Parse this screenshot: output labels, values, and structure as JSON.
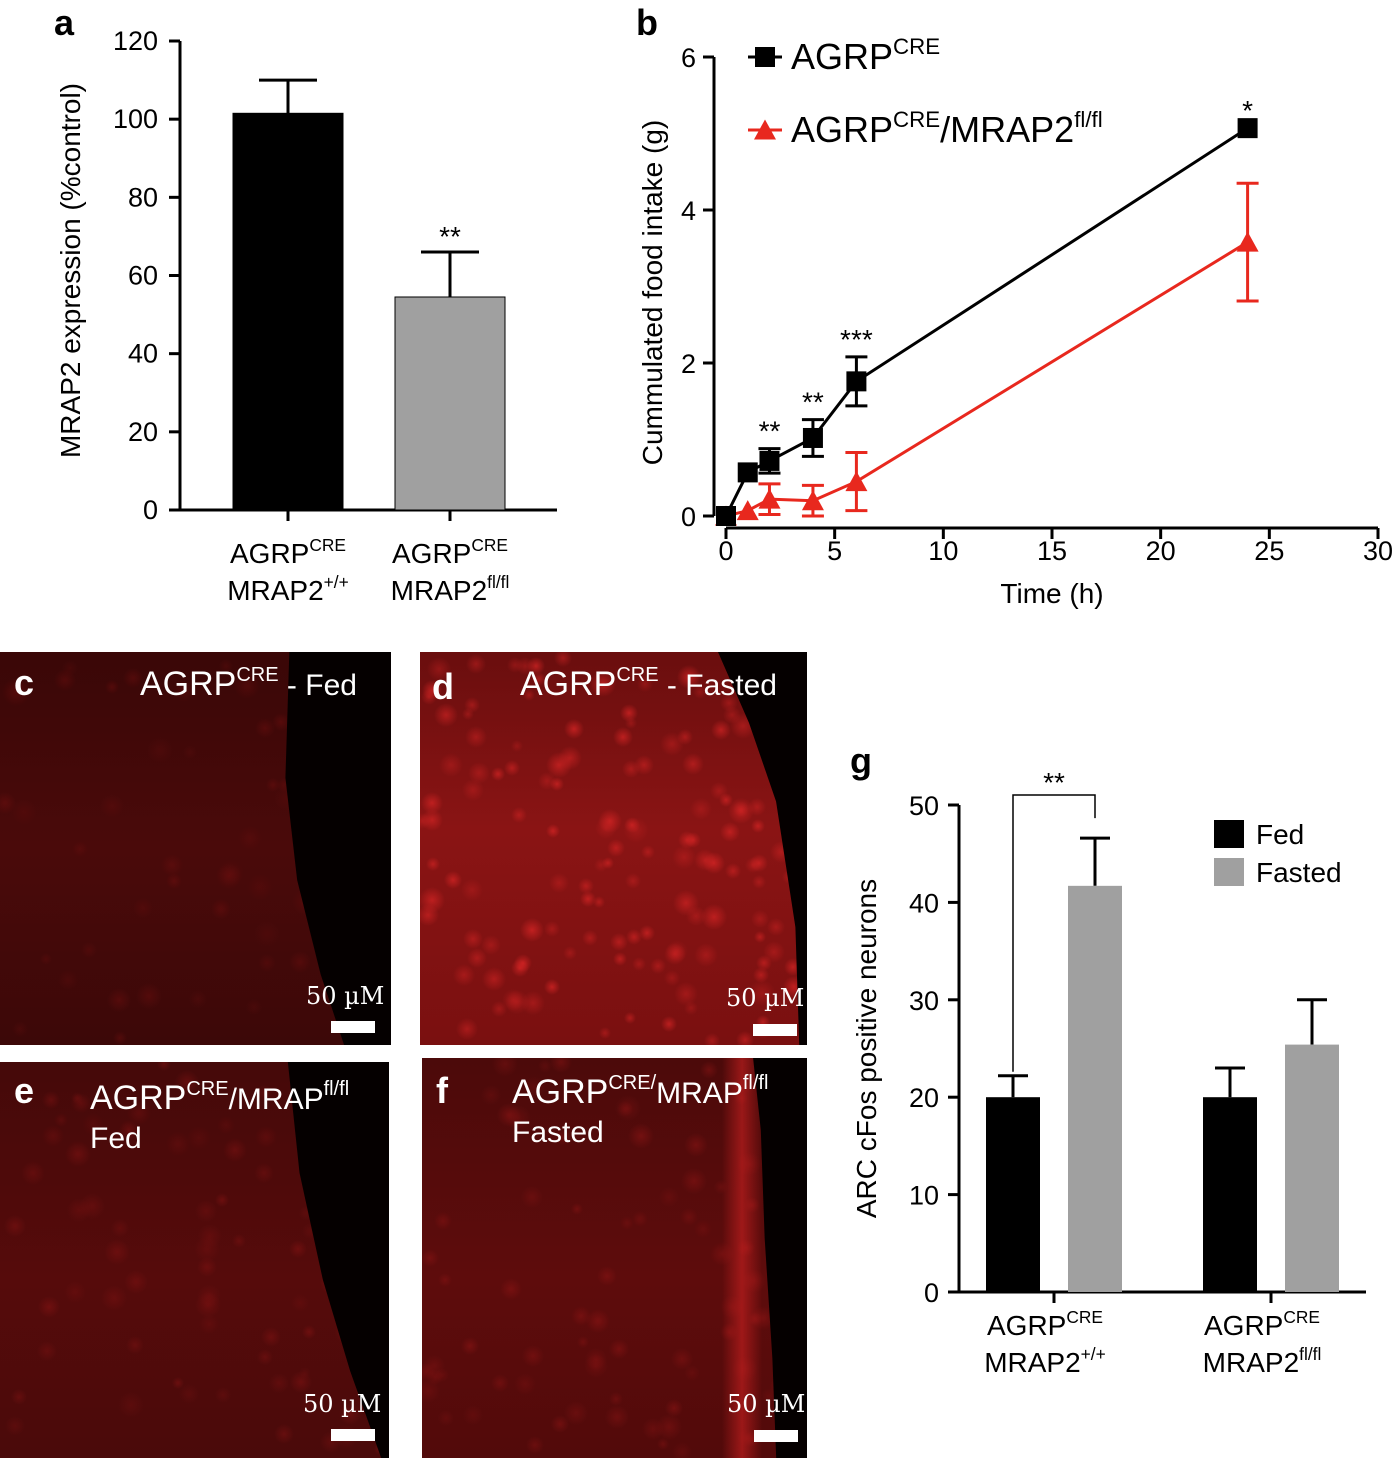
{
  "chart_data": [
    {
      "panel": "a",
      "type": "bar",
      "ylabel": "MRAP2 expression (%control)",
      "ylim": [
        0,
        120
      ],
      "yticks": [
        0,
        20,
        40,
        60,
        80,
        100,
        120
      ],
      "categories": [
        {
          "line1": "AGRP",
          "line1_sup": "CRE",
          "line2": "MRAP2",
          "line2_sup": "+/+"
        },
        {
          "line1": "AGRP",
          "line1_sup": "CRE",
          "line2": "MRAP2",
          "line2_sup": "fl/fl"
        }
      ],
      "values": [
        101.5,
        54.5
      ],
      "errors": [
        8.5,
        11.5
      ],
      "colors": [
        "#000000",
        "#a0a0a0"
      ],
      "annotations": [
        "",
        "**"
      ]
    },
    {
      "panel": "b",
      "type": "line",
      "xlabel": "Time (h)",
      "ylabel": "Cummulated food intake (g)",
      "xlim": [
        0,
        30
      ],
      "ylim": [
        0,
        6
      ],
      "xticks": [
        0,
        5,
        10,
        15,
        20,
        25,
        30
      ],
      "yticks": [
        0,
        2,
        4,
        6
      ],
      "legend_position": "top-left",
      "series": [
        {
          "name": "AGRP",
          "name_sup": "CRE",
          "name_rest": "",
          "name_rest_sup": "",
          "color": "#000000",
          "marker": "square",
          "x": [
            0,
            1,
            2,
            4,
            6,
            24
          ],
          "y": [
            0,
            0.57,
            0.72,
            1.02,
            1.76,
            5.07
          ],
          "err": [
            0,
            0.0,
            0.16,
            0.24,
            0.32,
            0.0
          ]
        },
        {
          "name": "AGRP",
          "name_sup": "CRE",
          "name_rest": "/MRAP2",
          "name_rest_sup": "fl/fl",
          "color": "#e8281e",
          "marker": "triangle",
          "x": [
            0,
            1,
            2,
            4,
            6,
            24
          ],
          "y": [
            0,
            0.07,
            0.22,
            0.2,
            0.45,
            3.58
          ],
          "err": [
            0,
            0.0,
            0.2,
            0.2,
            0.38,
            0.77
          ]
        }
      ],
      "annotations": [
        {
          "x": 2,
          "text": "**"
        },
        {
          "x": 4,
          "text": "**"
        },
        {
          "x": 6,
          "text": "***"
        },
        {
          "x": 24,
          "text": "*"
        }
      ]
    },
    {
      "panel": "g",
      "type": "bar",
      "ylabel": "ARC cFos positive neurons",
      "ylim": [
        0,
        50
      ],
      "yticks": [
        0,
        10,
        20,
        30,
        40,
        50
      ],
      "legend_position": "top-right",
      "categories": [
        {
          "line1": "AGRP",
          "line1_sup": "CRE",
          "line2": "MRAP2",
          "line2_sup": "+/+"
        },
        {
          "line1": "AGRP",
          "line1_sup": "CRE",
          "line2": "MRAP2",
          "line2_sup": "fl/fl"
        }
      ],
      "series": [
        {
          "name": "Fed",
          "color": "#000000",
          "values": [
            20,
            20
          ],
          "errors": [
            2.2,
            3.0
          ]
        },
        {
          "name": "Fasted",
          "color": "#a0a0a0",
          "values": [
            41.7,
            25.4
          ],
          "errors": [
            4.9,
            4.6
          ]
        }
      ],
      "significance": {
        "text": "**",
        "group": 0
      }
    }
  ],
  "panel_labels": {
    "a": "a",
    "b": "b",
    "g": "g"
  },
  "micrographs": [
    {
      "label": "c",
      "title": "AGRP",
      "title_sup": "CRE",
      "title_rest": " - Fed",
      "title_rest_sup": "",
      "title_line2": "",
      "scale": "50 µM"
    },
    {
      "label": "d",
      "title": "AGRP",
      "title_sup": "CRE",
      "title_rest": " - Fasted",
      "title_rest_sup": "",
      "title_line2": "",
      "scale": "50 µM"
    },
    {
      "label": "e",
      "title": "AGRP",
      "title_sup": "CRE",
      "title_rest": "/MRAP",
      "title_rest_sup": "fl/fl",
      "title_line2": "Fed",
      "scale": "50 µM"
    },
    {
      "label": "f",
      "title": "AGRP",
      "title_sup": "CRE/",
      "title_rest": "MRAP",
      "title_rest_sup": "fl/fl",
      "title_line2": "Fasted",
      "scale": "50 µM"
    }
  ]
}
